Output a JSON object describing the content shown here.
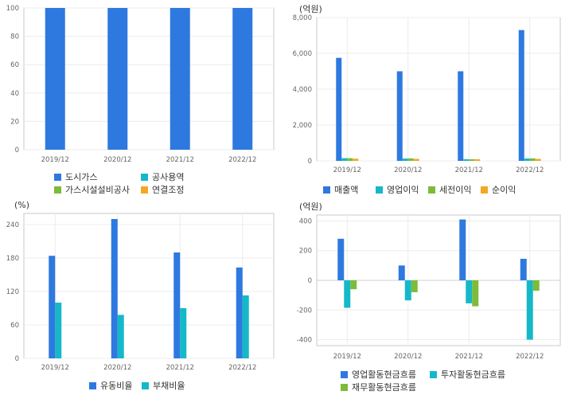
{
  "colors": {
    "blue": "#2e79e0",
    "teal": "#15b8c9",
    "green": "#7dbb3a",
    "orange": "#f5a623"
  },
  "chart_data": [
    {
      "id": "composition",
      "type": "bar",
      "unit": "",
      "categories": [
        "2019/12",
        "2020/12",
        "2021/12",
        "2022/12"
      ],
      "ylim": [
        0,
        100
      ],
      "yticks": [
        0,
        20,
        40,
        60,
        80,
        100
      ],
      "series": [
        {
          "name": "도시가스",
          "color": "#2e79e0",
          "values": [
            100,
            100,
            100,
            100
          ]
        },
        {
          "name": "공사용역",
          "color": "#15b8c9",
          "values": [
            0,
            0,
            0,
            0
          ]
        },
        {
          "name": "가스시설설비공사",
          "color": "#7dbb3a",
          "values": [
            0,
            0,
            0,
            0
          ]
        },
        {
          "name": "연결조정",
          "color": "#f5a623",
          "values": [
            0,
            0,
            0,
            0
          ]
        }
      ]
    },
    {
      "id": "income",
      "type": "bar",
      "unit": "(억원)",
      "categories": [
        "2019/12",
        "2020/12",
        "2021/12",
        "2022/12"
      ],
      "ylim": [
        0,
        8000
      ],
      "yticks": [
        0,
        2000,
        4000,
        6000,
        8000
      ],
      "ytick_labels": [
        "0",
        "2,000",
        "4,000",
        "6,000",
        "8,000"
      ],
      "series": [
        {
          "name": "매출액",
          "color": "#2e79e0",
          "values": [
            5750,
            5000,
            5000,
            7300
          ]
        },
        {
          "name": "영업이익",
          "color": "#15b8c9",
          "values": [
            150,
            130,
            40,
            130
          ]
        },
        {
          "name": "세전이익",
          "color": "#7dbb3a",
          "values": [
            150,
            140,
            30,
            140
          ]
        },
        {
          "name": "순이익",
          "color": "#f5a623",
          "values": [
            120,
            110,
            20,
            110
          ]
        }
      ]
    },
    {
      "id": "ratios",
      "type": "bar",
      "unit": "(%)",
      "categories": [
        "2019/12",
        "2020/12",
        "2021/12",
        "2022/12"
      ],
      "ylim": [
        0,
        260
      ],
      "yticks": [
        0,
        60,
        120,
        180,
        240
      ],
      "series": [
        {
          "name": "유동비율",
          "color": "#2e79e0",
          "values": [
            184,
            250,
            190,
            163
          ]
        },
        {
          "name": "부채비율",
          "color": "#15b8c9",
          "values": [
            100,
            78,
            90,
            113
          ]
        }
      ]
    },
    {
      "id": "cashflow",
      "type": "bar",
      "unit": "(억원)",
      "categories": [
        "2019/12",
        "2020/12",
        "2021/12",
        "2022/12"
      ],
      "ylim": [
        -440,
        440
      ],
      "yticks": [
        -400,
        -200,
        0,
        200,
        400
      ],
      "ytick_labels": [
        "-400",
        "-200",
        "0",
        "200",
        "400"
      ],
      "series": [
        {
          "name": "영업활동현금흐름",
          "color": "#2e79e0",
          "values": [
            280,
            100,
            410,
            145
          ]
        },
        {
          "name": "투자활동현금흐름",
          "color": "#15b8c9",
          "values": [
            -185,
            -135,
            -155,
            -400
          ]
        },
        {
          "name": "재무활동현금흐름",
          "color": "#7dbb3a",
          "values": [
            -60,
            -80,
            -175,
            -70
          ]
        }
      ]
    }
  ]
}
